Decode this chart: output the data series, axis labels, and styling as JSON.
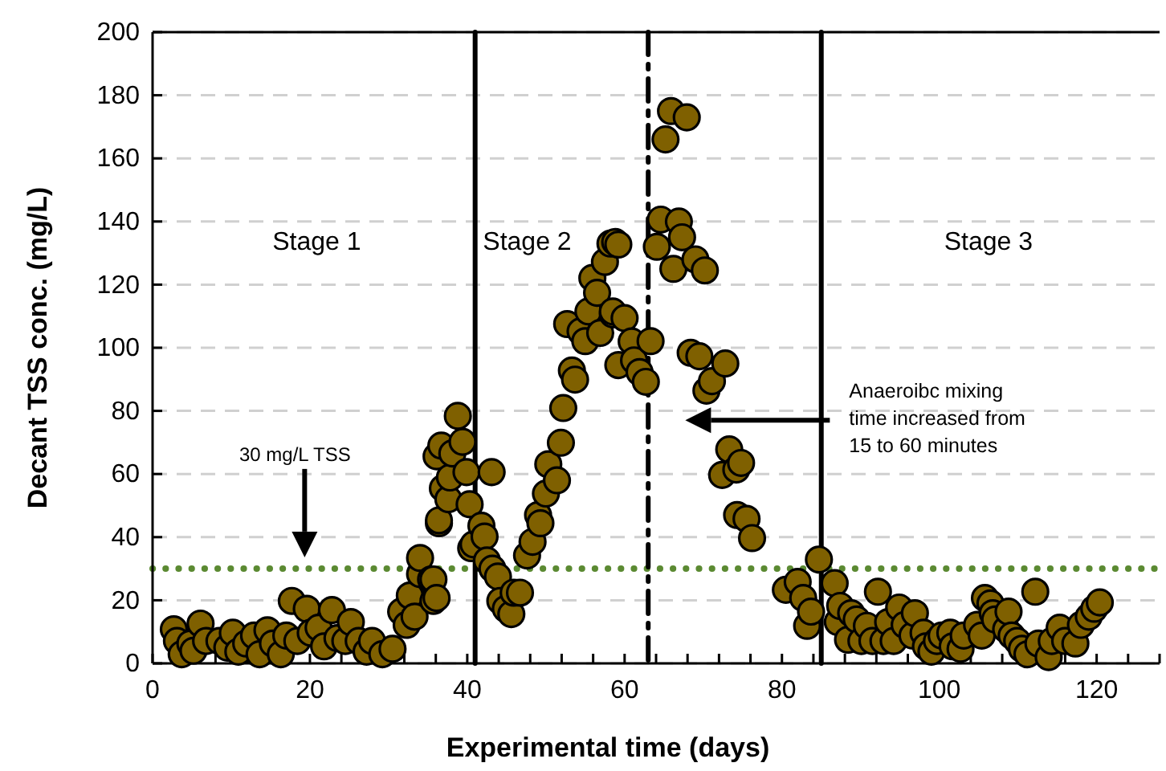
{
  "chart_data": {
    "type": "scatter",
    "xlabel": "Experimental time (days)",
    "ylabel": "Decant TSS conc. (mg/L)",
    "xlim": [
      0,
      128
    ],
    "xticks": [
      0,
      {
        "value": 4,
        "label": null
      },
      {
        "value": 8,
        "label": null
      },
      {
        "value": 12,
        "label": null
      },
      {
        "value": 16,
        "label": null
      },
      20,
      {
        "value": 24,
        "label": null
      },
      {
        "value": 28,
        "label": null
      },
      {
        "value": 32,
        "label": null
      },
      {
        "value": 36,
        "label": null
      },
      40,
      {
        "value": 44,
        "label": null
      },
      {
        "value": 48,
        "label": null
      },
      {
        "value": 52,
        "label": null
      },
      {
        "value": 56,
        "label": null
      },
      60,
      {
        "value": 64,
        "label": null
      },
      {
        "value": 68,
        "label": null
      },
      {
        "value": 72,
        "label": null
      },
      {
        "value": 76,
        "label": null
      },
      80,
      {
        "value": 84,
        "label": null
      },
      {
        "value": 88,
        "label": null
      },
      {
        "value": 92,
        "label": null
      },
      {
        "value": 96,
        "label": null
      },
      100,
      {
        "value": 104,
        "label": null
      },
      {
        "value": 108,
        "label": null
      },
      {
        "value": 112,
        "label": null
      },
      {
        "value": 116,
        "label": null
      },
      120,
      {
        "value": 124,
        "label": null
      },
      {
        "value": 128,
        "label": null
      }
    ],
    "ylim": [
      0,
      200
    ],
    "yticks": [
      0,
      20,
      40,
      60,
      80,
      100,
      120,
      140,
      160,
      180,
      200
    ],
    "grid": "y",
    "marker": "circle",
    "series": [
      {
        "color": "#7f6000",
        "x": [
          2.7,
          3.1,
          3.7,
          4.8,
          5.2,
          6.1,
          6.8,
          8.5,
          9.5,
          10.2,
          10.9,
          11.9,
          12.9,
          13.6,
          14.6,
          15.3,
          16.3,
          17,
          17.7,
          18.4,
          19.6,
          20.1,
          21.1,
          21.8,
          22.8,
          23.5,
          24.5,
          25.2,
          26.2,
          27.2,
          27.9,
          29.2,
          30.5,
          31.6,
          32.3,
          32.7,
          33.3,
          34,
          34,
          35.4,
          35.7,
          35.7,
          36.1,
          36.1,
          36.4,
          36.4,
          36.7,
          36.9,
          37.6,
          37.8,
          38.1,
          38.8,
          39.4,
          39.9,
          40.3,
          40.5,
          40.8,
          41.8,
          42.2,
          42.5,
          43.1,
          43.2,
          43.9,
          44.2,
          44.9,
          45.6,
          45.9,
          46.7,
          47.6,
          48.3,
          49,
          49.3,
          50,
          50.3,
          51.4,
          51.9,
          52.2,
          52.7,
          53.3,
          53.7,
          54.4,
          55,
          55.4,
          55.9,
          56.5,
          56.9,
          57.5,
          58.2,
          58.5,
          58.5,
          58.8,
          59.2,
          59.2,
          60,
          60.9,
          61.2,
          61.9,
          62.7,
          63.3,
          64.1,
          64.6,
          65.2,
          65.9,
          66.2,
          66.9,
          67.3,
          67.9,
          68.4,
          69,
          69.5,
          70.2,
          70.4,
          71.1,
          72.4,
          72.8,
          73.3,
          74.2,
          74.3,
          74.8,
          75.5,
          76.2,
          80.5,
          82,
          82.7,
          83.2,
          83.7,
          84.7,
          86.7,
          87.1,
          87.4,
          88.4,
          88.8,
          89.5,
          90.1,
          90.8,
          91.5,
          92.2,
          92.9,
          93.5,
          94.2,
          94.9,
          95.6,
          96.6,
          96.9,
          98,
          98.3,
          99,
          99.7,
          100.3,
          101.4,
          101.7,
          102.7,
          103.1,
          104.8,
          105.4,
          105.8,
          106.5,
          106.8,
          107.1,
          108.5,
          108.8,
          109.2,
          109.9,
          110.5,
          111.2,
          112.2,
          112.6,
          113.9,
          114.3,
          115.3,
          116,
          117.3,
          118,
          119,
          119.7,
          120.4
        ],
        "values": [
          10.8,
          7.1,
          2.9,
          6.3,
          4,
          12.6,
          7.1,
          7.1,
          5,
          9.7,
          3.7,
          6.3,
          8.8,
          2.9,
          10.5,
          6.3,
          2.9,
          8.8,
          19.8,
          7.1,
          17.3,
          9.7,
          11.3,
          5.4,
          16.9,
          8,
          7.1,
          13.1,
          7.1,
          3.7,
          7.1,
          2.9,
          4.6,
          16.4,
          12.2,
          21.5,
          14.8,
          28.3,
          33.4,
          26.6,
          19.8,
          26.6,
          20.7,
          65.6,
          44.4,
          45.3,
          69,
          55.5,
          52,
          58.9,
          66.5,
          78.4,
          70.2,
          60.6,
          50.4,
          36.5,
          37.7,
          43.6,
          40.2,
          32.6,
          60.6,
          30,
          27.5,
          19.8,
          17.3,
          15.6,
          22.4,
          22.4,
          34.2,
          38.5,
          47,
          44.4,
          53.8,
          63.1,
          58,
          69.9,
          80.9,
          107.5,
          92.8,
          89.9,
          105.2,
          102.1,
          111.5,
          122.1,
          117.4,
          104.7,
          127.2,
          133,
          110.6,
          111.5,
          133.5,
          132.7,
          94.5,
          109.4,
          102,
          96,
          92.3,
          89.2,
          102.1,
          132,
          140.6,
          166,
          175,
          125,
          140,
          135,
          173,
          98.4,
          128,
          97.3,
          124.5,
          86.4,
          89.4,
          59.7,
          95,
          67.8,
          61.4,
          47,
          63.5,
          45.8,
          39.7,
          23.3,
          25.8,
          20.7,
          11.9,
          16.4,
          32.9,
          25.4,
          13.1,
          18.2,
          7.5,
          15.9,
          13.9,
          7.1,
          11.9,
          7.1,
          22.7,
          7.1,
          13.1,
          7.1,
          17.7,
          12.2,
          8.8,
          15.9,
          9.7,
          5.4,
          3.7,
          7.1,
          8.8,
          9.7,
          5.4,
          4.6,
          8.8,
          12.2,
          8.8,
          20.7,
          19,
          15.9,
          13.9,
          10.8,
          16.4,
          8.8,
          7.1,
          4.6,
          2.9,
          22.7,
          6.3,
          2,
          7.1,
          11.3,
          7.1,
          6.3,
          12.2,
          14.8,
          17.3,
          19.3
        ]
      }
    ],
    "ref_lines": [
      {
        "axis": "y",
        "value": 30,
        "color": "#5b8a32",
        "line_style": "dotted"
      },
      {
        "axis": "x",
        "value": 41,
        "color": "#000000",
        "line_style": "solid"
      },
      {
        "axis": "x",
        "value": 63,
        "color": "#000000",
        "line_style": "dashed"
      },
      {
        "axis": "x",
        "value": 85,
        "color": "#000000",
        "line_style": "solid"
      }
    ],
    "annotations": [
      "Stage 1",
      "Stage 2",
      "Stage 3",
      "30 mg/L TSS",
      "Anaeroibc mixing time increased from 15 to 60 minutes"
    ]
  }
}
